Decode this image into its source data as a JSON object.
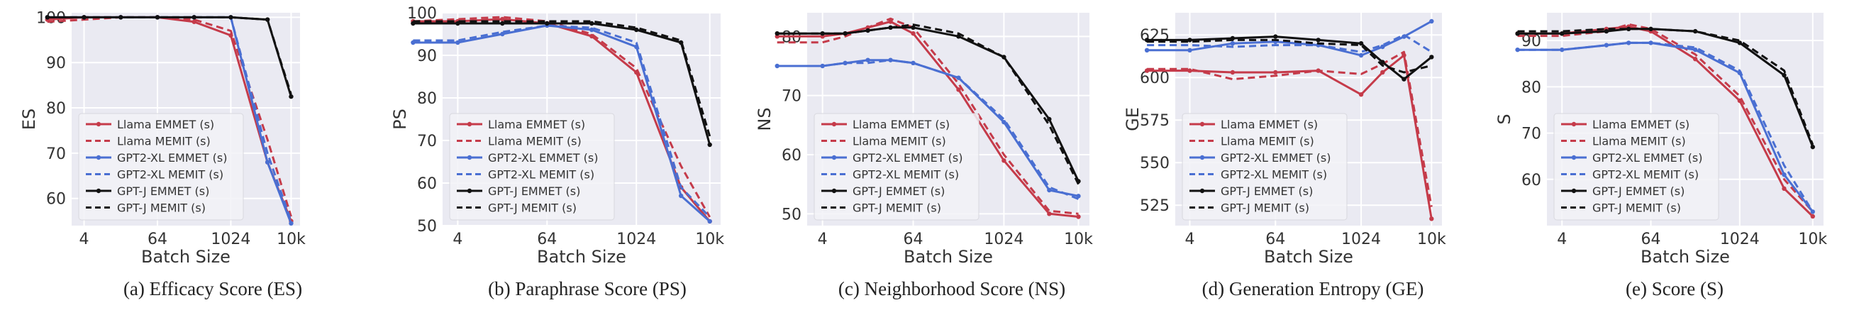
{
  "colors": {
    "llama": "#c53b4a",
    "gpt2": "#4a6fd2",
    "gptj": "#111111",
    "panel_bg": "#eaeaf2",
    "grid": "#ffffff",
    "legend_bg": "#f2f2f7"
  },
  "legend": [
    {
      "name": "Llama EMMET (s)",
      "color_key": "llama",
      "dashed": false
    },
    {
      "name": "Llama MEMIT (s)",
      "color_key": "llama",
      "dashed": true
    },
    {
      "name": "GPT2-XL EMMET (s)",
      "color_key": "gpt2",
      "dashed": false
    },
    {
      "name": "GPT2-XL MEMIT (s)",
      "color_key": "gpt2",
      "dashed": true
    },
    {
      "name": "GPT-J EMMET (s)",
      "color_key": "gptj",
      "dashed": false
    },
    {
      "name": "GPT-J MEMIT (s)",
      "color_key": "gptj",
      "dashed": true
    }
  ],
  "chart_data": [
    {
      "type": "line",
      "caption": "(a) Efficacy Score (ES)",
      "xlabel": "Batch Size",
      "ylabel": "ES",
      "x_scale": "log2",
      "x": [
        1,
        4,
        16,
        64,
        256,
        1024,
        4096,
        10000
      ],
      "x_ticks": [
        4,
        64,
        1024,
        10000
      ],
      "x_tick_labels": [
        "4",
        "64",
        "1024",
        "10k"
      ],
      "xlim": [
        2.5,
        14000
      ],
      "ylim": [
        54,
        101
      ],
      "y_ticks": [
        60,
        70,
        80,
        90,
        100
      ],
      "legend_position": "lower-left",
      "series": [
        {
          "name": "Llama EMMET (s)",
          "values": [
            99.5,
            100,
            100,
            100,
            99,
            96,
            68,
            55
          ]
        },
        {
          "name": "Llama MEMIT (s)",
          "values": [
            99,
            99.5,
            100,
            100,
            99.5,
            97,
            73,
            56
          ]
        },
        {
          "name": "GPT2-XL EMMET (s)",
          "values": [
            100,
            100,
            100,
            100,
            100,
            100,
            68,
            54.5
          ]
        },
        {
          "name": "GPT2-XL MEMIT (s)",
          "values": [
            100,
            100,
            100,
            100,
            100,
            100,
            70,
            55
          ]
        },
        {
          "name": "GPT-J EMMET (s)",
          "values": [
            100,
            100,
            100,
            100,
            100,
            100,
            99.5,
            82.5
          ]
        },
        {
          "name": "GPT-J MEMIT (s)",
          "values": [
            100,
            100,
            100,
            100,
            100,
            100,
            99.5,
            83
          ]
        }
      ]
    },
    {
      "type": "line",
      "caption": "(b) Paraphrase Score (PS)",
      "xlabel": "Batch Size",
      "ylabel": "PS",
      "x_scale": "log2",
      "x": [
        1,
        4,
        16,
        64,
        256,
        1024,
        4096,
        10000
      ],
      "x_ticks": [
        4,
        64,
        1024,
        10000
      ],
      "x_tick_labels": [
        "4",
        "64",
        "1024",
        "10k"
      ],
      "xlim": [
        2.5,
        14000
      ],
      "ylim": [
        50,
        100
      ],
      "y_ticks": [
        50,
        60,
        70,
        80,
        90,
        100
      ],
      "legend_position": "lower-left",
      "series": [
        {
          "name": "Llama EMMET (s)",
          "values": [
            98,
            98,
            98.5,
            97.5,
            94.5,
            86,
            59,
            51
          ]
        },
        {
          "name": "Llama MEMIT (s)",
          "values": [
            98,
            98.5,
            99,
            98,
            95,
            87,
            64,
            52
          ]
        },
        {
          "name": "GPT2-XL EMMET (s)",
          "values": [
            93,
            93,
            95,
            97,
            96,
            92,
            57,
            51
          ]
        },
        {
          "name": "GPT2-XL MEMIT (s)",
          "values": [
            93.5,
            93.5,
            95.5,
            97,
            96.5,
            93,
            59,
            52
          ]
        },
        {
          "name": "GPT-J EMMET (s)",
          "values": [
            97.5,
            97.5,
            97.5,
            97.5,
            97.5,
            96,
            93,
            69
          ]
        },
        {
          "name": "GPT-J MEMIT (s)",
          "values": [
            98,
            98,
            98,
            98,
            98,
            96.5,
            93.5,
            71
          ]
        }
      ]
    },
    {
      "type": "line",
      "caption": "(c) Neighborhood Score (NS)",
      "xlabel": "Batch Size",
      "ylabel": "NS",
      "x_scale": "log2",
      "x": [
        1,
        4,
        8,
        16,
        32,
        64,
        256,
        1024,
        4096,
        10000
      ],
      "x_ticks": [
        4,
        64,
        1024,
        10000
      ],
      "x_tick_labels": [
        "4",
        "64",
        "1024",
        "10k"
      ],
      "xlim": [
        2.5,
        14000
      ],
      "ylim": [
        48,
        84
      ],
      "y_ticks": [
        50,
        60,
        70,
        80
      ],
      "legend_position": "lower-left",
      "series": [
        {
          "name": "Llama EMMET (s)",
          "values": [
            80,
            80,
            80.5,
            81.5,
            82.5,
            80.5,
            71,
            59,
            50,
            49.5
          ]
        },
        {
          "name": "Llama MEMIT (s)",
          "values": [
            79,
            79,
            80,
            81.5,
            83,
            81.5,
            72,
            60,
            50.5,
            50
          ]
        },
        {
          "name": "GPT2-XL EMMET (s)",
          "values": [
            75,
            75,
            75.5,
            76,
            76,
            75.5,
            73,
            65.5,
            54,
            53
          ]
        },
        {
          "name": "GPT2-XL MEMIT (s)",
          "values": [
            75,
            75,
            75.5,
            75.5,
            76,
            75.5,
            73,
            66,
            54.5,
            52.5
          ]
        },
        {
          "name": "GPT-J EMMET (s)",
          "values": [
            80.5,
            80.5,
            80.5,
            81,
            81.5,
            81.5,
            80,
            76.5,
            66,
            55.5
          ]
        },
        {
          "name": "GPT-J MEMIT (s)",
          "values": [
            80.5,
            80.5,
            80.5,
            81,
            81.5,
            82,
            80.5,
            76.5,
            65,
            55
          ]
        }
      ]
    },
    {
      "type": "line",
      "caption": "(d) Generation Entropy (GE)",
      "xlabel": "Batch Size",
      "ylabel": "GE",
      "x_scale": "log2",
      "x": [
        1,
        4,
        16,
        64,
        256,
        1024,
        2048,
        4096,
        10000
      ],
      "x_ticks": [
        4,
        64,
        1024,
        10000
      ],
      "x_tick_labels": [
        "4",
        "64",
        "1024",
        "10k"
      ],
      "xlim": [
        2.5,
        14000
      ],
      "ylim": [
        513,
        638
      ],
      "y_ticks": [
        525,
        550,
        575,
        600,
        625
      ],
      "legend_position": "lower-left",
      "series": [
        {
          "name": "Llama EMMET (s)",
          "values": [
            604,
            604,
            603,
            603,
            604,
            590,
            603,
            613,
            517
          ]
        },
        {
          "name": "Llama MEMIT (s)",
          "values": [
            605,
            605,
            599,
            601,
            604,
            602,
            608,
            615,
            524
          ]
        },
        {
          "name": "GPT2-XL EMMET (s)",
          "values": [
            616,
            616,
            620,
            621,
            619,
            613,
            618,
            624,
            633
          ]
        },
        {
          "name": "GPT2-XL MEMIT (s)",
          "values": [
            619,
            619,
            618,
            619,
            619,
            615,
            619,
            625,
            615
          ]
        },
        {
          "name": "GPT-J EMMET (s)",
          "values": [
            622,
            622,
            623,
            624,
            622,
            620,
            609,
            599,
            612
          ]
        },
        {
          "name": "GPT-J MEMIT (s)",
          "values": [
            621,
            621,
            622,
            622,
            620,
            619,
            607,
            603,
            607
          ]
        }
      ]
    },
    {
      "type": "line",
      "caption": "(e) Score (S)",
      "xlabel": "Batch Size",
      "ylabel": "S",
      "x_scale": "log2",
      "x": [
        1,
        4,
        16,
        32,
        64,
        256,
        1024,
        4096,
        10000
      ],
      "x_ticks": [
        4,
        64,
        1024,
        10000
      ],
      "x_tick_labels": [
        "4",
        "64",
        "1024",
        "10k"
      ],
      "xlim": [
        2.5,
        14000
      ],
      "ylim": [
        50,
        96
      ],
      "y_ticks": [
        60,
        70,
        80,
        90
      ],
      "legend_position": "lower-left",
      "series": [
        {
          "name": "Llama EMMET (s)",
          "values": [
            91.5,
            91.5,
            92.5,
            93,
            92,
            86,
            77,
            58,
            52
          ]
        },
        {
          "name": "Llama MEMIT (s)",
          "values": [
            91,
            91,
            92,
            93.5,
            92.5,
            87,
            78,
            60,
            53
          ]
        },
        {
          "name": "GPT2-XL EMMET (s)",
          "values": [
            88,
            88,
            89,
            89.5,
            89.5,
            88,
            83,
            61,
            53
          ]
        },
        {
          "name": "GPT2-XL MEMIT (s)",
          "values": [
            88,
            88,
            89,
            89.5,
            89.5,
            88.5,
            83.5,
            63,
            53
          ]
        },
        {
          "name": "GPT-J EMMET (s)",
          "values": [
            91.5,
            91.5,
            92,
            92.5,
            92.5,
            92,
            89.5,
            82.5,
            67
          ]
        },
        {
          "name": "GPT-J MEMIT (s)",
          "values": [
            92,
            92,
            92.5,
            92.5,
            92.5,
            92,
            90,
            83.5,
            67.5
          ]
        }
      ]
    }
  ]
}
